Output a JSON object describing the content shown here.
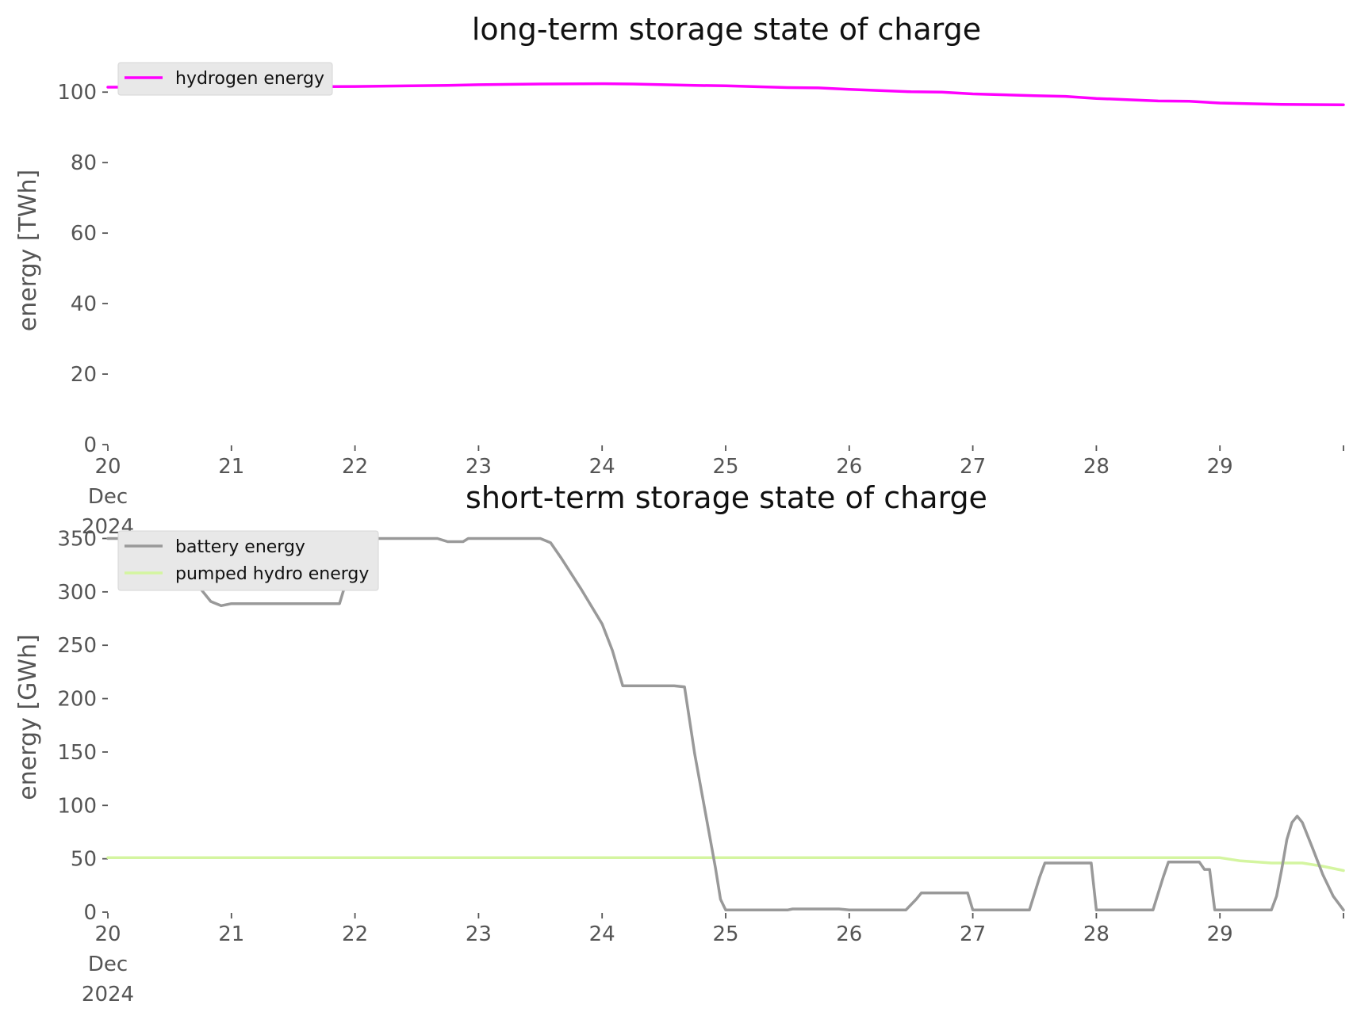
{
  "chart_data": [
    {
      "type": "line",
      "title": "long-term storage state of charge",
      "xlabel": "",
      "ylabel": "energy [TWh]",
      "xlim": [
        "2024-12-20",
        "2024-12-30"
      ],
      "ylim": [
        0,
        105
      ],
      "yticks": [
        0,
        20,
        40,
        60,
        80,
        100
      ],
      "xtick_labels": [
        {
          "date": "2024-12-20",
          "lines": [
            "20",
            "Dec",
            "2024"
          ]
        },
        {
          "date": "2024-12-21",
          "lines": [
            "21"
          ]
        },
        {
          "date": "2024-12-22",
          "lines": [
            "22"
          ]
        },
        {
          "date": "2024-12-23",
          "lines": [
            "23"
          ]
        },
        {
          "date": "2024-12-24",
          "lines": [
            "24"
          ]
        },
        {
          "date": "2024-12-25",
          "lines": [
            "25"
          ]
        },
        {
          "date": "2024-12-26",
          "lines": [
            "26"
          ]
        },
        {
          "date": "2024-12-27",
          "lines": [
            "27"
          ]
        },
        {
          "date": "2024-12-28",
          "lines": [
            "28"
          ]
        },
        {
          "date": "2024-12-29",
          "lines": [
            "29"
          ]
        },
        {
          "date": "2024-12-30",
          "lines": [
            ""
          ]
        }
      ],
      "grid": false,
      "legend_position": "top-left",
      "series": [
        {
          "name": "hydrogen energy",
          "color": "#ff00ff",
          "points": [
            [
              "2024-12-20 00:00",
              101.4
            ],
            [
              "2024-12-21 00:00",
              101.5
            ],
            [
              "2024-12-22 00:00",
              101.6
            ],
            [
              "2024-12-22 18:00",
              101.9
            ],
            [
              "2024-12-23 00:00",
              102.1
            ],
            [
              "2024-12-23 12:00",
              102.3
            ],
            [
              "2024-12-24 00:00",
              102.4
            ],
            [
              "2024-12-24 06:00",
              102.3
            ],
            [
              "2024-12-24 18:00",
              101.9
            ],
            [
              "2024-12-25 00:00",
              101.8
            ],
            [
              "2024-12-25 12:00",
              101.3
            ],
            [
              "2024-12-25 18:00",
              101.2
            ],
            [
              "2024-12-26 00:00",
              100.8
            ],
            [
              "2024-12-26 12:00",
              100.1
            ],
            [
              "2024-12-26 18:00",
              100.0
            ],
            [
              "2024-12-27 00:00",
              99.5
            ],
            [
              "2024-12-27 12:00",
              99.0
            ],
            [
              "2024-12-27 18:00",
              98.8
            ],
            [
              "2024-12-28 00:00",
              98.2
            ],
            [
              "2024-12-28 12:00",
              97.5
            ],
            [
              "2024-12-28 18:00",
              97.4
            ],
            [
              "2024-12-29 00:00",
              96.9
            ],
            [
              "2024-12-29 12:00",
              96.5
            ],
            [
              "2024-12-30 00:00",
              96.4
            ]
          ]
        }
      ]
    },
    {
      "type": "line",
      "title": "short-term storage state of charge",
      "xlabel": "",
      "ylabel": "energy [GWh]",
      "xlim": [
        "2024-12-20",
        "2024-12-30"
      ],
      "ylim": [
        0,
        360
      ],
      "yticks": [
        0,
        50,
        100,
        150,
        200,
        250,
        300,
        350
      ],
      "xtick_labels": [
        {
          "date": "2024-12-20",
          "lines": [
            "20",
            "Dec",
            "2024"
          ]
        },
        {
          "date": "2024-12-21",
          "lines": [
            "21"
          ]
        },
        {
          "date": "2024-12-22",
          "lines": [
            "22"
          ]
        },
        {
          "date": "2024-12-23",
          "lines": [
            "23"
          ]
        },
        {
          "date": "2024-12-24",
          "lines": [
            "24"
          ]
        },
        {
          "date": "2024-12-25",
          "lines": [
            "25"
          ]
        },
        {
          "date": "2024-12-26",
          "lines": [
            "26"
          ]
        },
        {
          "date": "2024-12-27",
          "lines": [
            "27"
          ]
        },
        {
          "date": "2024-12-28",
          "lines": [
            "28"
          ]
        },
        {
          "date": "2024-12-29",
          "lines": [
            "29"
          ]
        },
        {
          "date": "2024-12-30",
          "lines": [
            ""
          ]
        }
      ],
      "grid": false,
      "legend_position": "top-left",
      "series": [
        {
          "name": "battery energy",
          "color": "#999999",
          "points": [
            [
              "2024-12-20 00:00",
              350
            ],
            [
              "2024-12-20 06:00",
              350
            ],
            [
              "2024-12-20 07:00",
              346
            ],
            [
              "2024-12-20 09:00",
              346
            ],
            [
              "2024-12-20 12:00",
              346
            ],
            [
              "2024-12-20 14:00",
              346
            ],
            [
              "2024-12-20 16:00",
              330
            ],
            [
              "2024-12-20 18:00",
              303
            ],
            [
              "2024-12-20 20:00",
              291
            ],
            [
              "2024-12-20 22:00",
              287
            ],
            [
              "2024-12-21 00:00",
              289
            ],
            [
              "2024-12-21 06:00",
              289
            ],
            [
              "2024-12-21 12:00",
              289
            ],
            [
              "2024-12-21 18:00",
              289
            ],
            [
              "2024-12-21 21:00",
              289
            ],
            [
              "2024-12-21 22:00",
              305
            ],
            [
              "2024-12-21 23:00",
              330
            ],
            [
              "2024-12-22 00:00",
              350
            ],
            [
              "2024-12-22 06:00",
              350
            ],
            [
              "2024-12-22 12:00",
              350
            ],
            [
              "2024-12-22 16:00",
              350
            ],
            [
              "2024-12-22 18:00",
              347
            ],
            [
              "2024-12-22 21:00",
              347
            ],
            [
              "2024-12-22 22:00",
              350
            ],
            [
              "2024-12-23 00:00",
              350
            ],
            [
              "2024-12-23 06:00",
              350
            ],
            [
              "2024-12-23 12:00",
              350
            ],
            [
              "2024-12-23 14:00",
              346
            ],
            [
              "2024-12-23 16:00",
              332
            ],
            [
              "2024-12-23 20:00",
              302
            ],
            [
              "2024-12-24 00:00",
              270
            ],
            [
              "2024-12-24 02:00",
              245
            ],
            [
              "2024-12-24 04:00",
              212
            ],
            [
              "2024-12-24 08:00",
              212
            ],
            [
              "2024-12-24 14:00",
              212
            ],
            [
              "2024-12-24 16:00",
              211
            ],
            [
              "2024-12-24 18:00",
              148
            ],
            [
              "2024-12-24 20:00",
              95
            ],
            [
              "2024-12-24 22:00",
              42
            ],
            [
              "2024-12-24 23:00",
              12
            ],
            [
              "2024-12-25 00:00",
              2
            ],
            [
              "2024-12-25 06:00",
              2
            ],
            [
              "2024-12-25 12:00",
              2
            ],
            [
              "2024-12-25 13:00",
              3
            ],
            [
              "2024-12-25 18:00",
              3
            ],
            [
              "2024-12-25 22:00",
              3
            ],
            [
              "2024-12-26 00:00",
              2
            ],
            [
              "2024-12-26 08:00",
              2
            ],
            [
              "2024-12-26 11:00",
              2
            ],
            [
              "2024-12-26 13:00",
              12
            ],
            [
              "2024-12-26 14:00",
              18
            ],
            [
              "2024-12-26 20:00",
              18
            ],
            [
              "2024-12-26 23:00",
              18
            ],
            [
              "2024-12-27 00:00",
              2
            ],
            [
              "2024-12-27 06:00",
              2
            ],
            [
              "2024-12-27 11:00",
              2
            ],
            [
              "2024-12-27 13:00",
              33
            ],
            [
              "2024-12-27 14:00",
              46
            ],
            [
              "2024-12-27 20:00",
              46
            ],
            [
              "2024-12-27 23:00",
              46
            ],
            [
              "2024-12-28 00:00",
              2
            ],
            [
              "2024-12-28 06:00",
              2
            ],
            [
              "2024-12-28 11:00",
              2
            ],
            [
              "2024-12-28 13:00",
              33
            ],
            [
              "2024-12-28 14:00",
              47
            ],
            [
              "2024-12-28 20:00",
              47
            ],
            [
              "2024-12-28 21:00",
              40
            ],
            [
              "2024-12-28 22:00",
              40
            ],
            [
              "2024-12-28 23:00",
              2
            ],
            [
              "2024-12-29 06:00",
              2
            ],
            [
              "2024-12-29 10:00",
              2
            ],
            [
              "2024-12-29 11:00",
              15
            ],
            [
              "2024-12-29 12:00",
              40
            ],
            [
              "2024-12-29 13:00",
              68
            ],
            [
              "2024-12-29 14:00",
              84
            ],
            [
              "2024-12-29 15:00",
              90
            ],
            [
              "2024-12-29 16:00",
              84
            ],
            [
              "2024-12-29 18:00",
              60
            ],
            [
              "2024-12-29 20:00",
              35
            ],
            [
              "2024-12-29 22:00",
              15
            ],
            [
              "2024-12-30 00:00",
              2
            ]
          ]
        },
        {
          "name": "pumped hydro energy",
          "color": "#d4f5a0",
          "points": [
            [
              "2024-12-20 00:00",
              51
            ],
            [
              "2024-12-21 00:00",
              51
            ],
            [
              "2024-12-22 00:00",
              51
            ],
            [
              "2024-12-23 00:00",
              51
            ],
            [
              "2024-12-24 00:00",
              51
            ],
            [
              "2024-12-25 00:00",
              51
            ],
            [
              "2024-12-26 00:00",
              51
            ],
            [
              "2024-12-27 00:00",
              51
            ],
            [
              "2024-12-28 00:00",
              51
            ],
            [
              "2024-12-28 12:00",
              51
            ],
            [
              "2024-12-29 00:00",
              51
            ],
            [
              "2024-12-29 04:00",
              48
            ],
            [
              "2024-12-29 10:00",
              46
            ],
            [
              "2024-12-29 16:00",
              46
            ],
            [
              "2024-12-29 20:00",
              43
            ],
            [
              "2024-12-30 00:00",
              39
            ]
          ]
        }
      ]
    }
  ]
}
